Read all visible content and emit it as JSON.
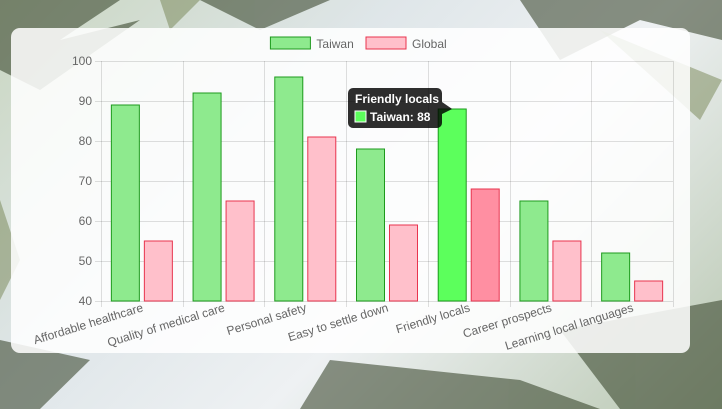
{
  "chart_data": {
    "type": "bar",
    "categories": [
      "Affordable healthcare",
      "Quality of medical care",
      "Personal safety",
      "Easy to settle down",
      "Friendly locals",
      "Career prospects",
      "Learning local languages"
    ],
    "series": [
      {
        "name": "Taiwan",
        "values": [
          89,
          92,
          96,
          78,
          88,
          65,
          52
        ],
        "fill": "#8eea8e",
        "stroke": "#1d9a1d",
        "hover_fill": "#5cff5c"
      },
      {
        "name": "Global",
        "values": [
          55,
          65,
          81,
          59,
          68,
          55,
          45
        ],
        "fill": "#ffc0cb",
        "stroke": "#e8344e",
        "hover_fill": "#ff8fa2"
      }
    ],
    "ylim": [
      40,
      100
    ],
    "yticks": [
      40,
      50,
      60,
      70,
      80,
      90,
      100
    ],
    "grid": true,
    "legend_position": "top",
    "tooltip": {
      "category_index": 4,
      "series_index": 0,
      "title": "Friendly locals",
      "label": "Taiwan: 88"
    }
  }
}
